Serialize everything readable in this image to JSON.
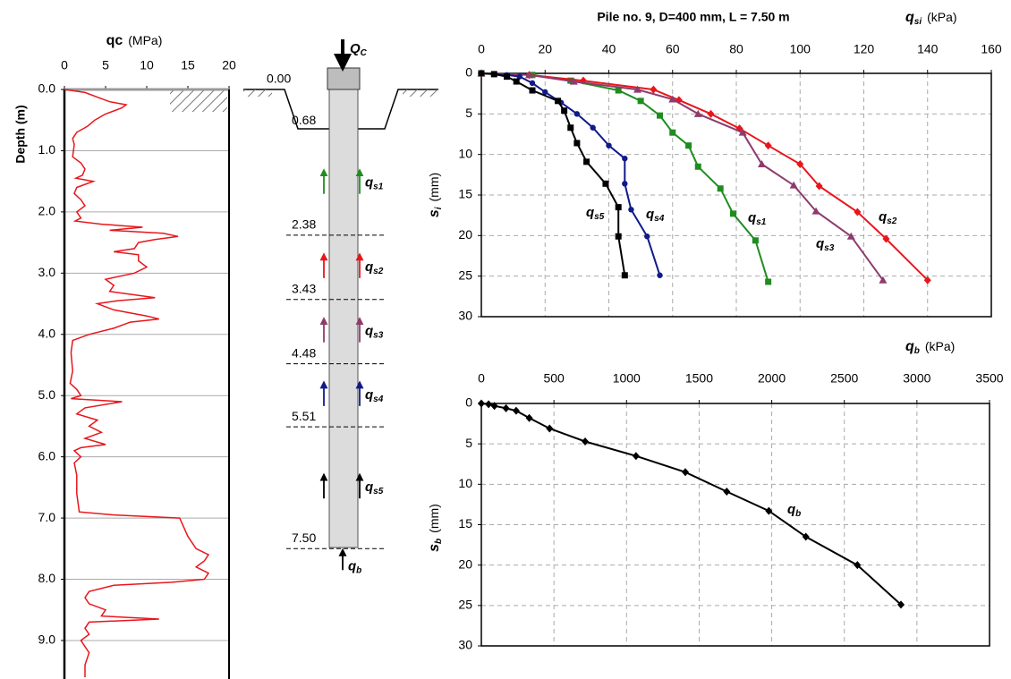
{
  "chart_data": [
    {
      "type": "line",
      "xlabel": {
        "symbol": "qc",
        "unit": "(MPa)"
      },
      "ylabel": "Depth (m)",
      "xaxis_position": "top",
      "yaxis_inverted": true,
      "grid": "y",
      "grid_style": "solid",
      "xlim": [
        0,
        20
      ],
      "xticks": [
        0,
        5,
        10,
        15,
        20
      ],
      "ylim": [
        0,
        9.6
      ],
      "yticks": [
        {
          "value": 0,
          "label": "0.0"
        },
        {
          "value": 1,
          "label": "1.0"
        },
        {
          "value": 2,
          "label": "2.0"
        },
        {
          "value": 3,
          "label": "3.0"
        },
        {
          "value": 4,
          "label": "4.0"
        },
        {
          "value": 5,
          "label": "5.0"
        },
        {
          "value": 6,
          "label": "6.0"
        },
        {
          "value": 7,
          "label": "7.0"
        },
        {
          "value": 8,
          "label": "8.0"
        },
        {
          "value": 9,
          "label": "9.0"
        }
      ],
      "series": [
        {
          "color": "#e8161b",
          "x": [
            0,
            2.5,
            4.5,
            5.5,
            7.5,
            7,
            6,
            5,
            3.7,
            2.8,
            1.5,
            1.0,
            1.2,
            1.0,
            2.0,
            2.5,
            2.2,
            1.4,
            3.5,
            1.5,
            1.2,
            2.0,
            2.5,
            1.5,
            2.0,
            1.3,
            4.5,
            9.5,
            5.5,
            12.0,
            13.8,
            11.0,
            9.0,
            8.5,
            6.0,
            9.0,
            9.0,
            10.0,
            8.5,
            5.0,
            6.0,
            5.5,
            11.0,
            6.5,
            4.0,
            6.0,
            10.0,
            11.5,
            8.0,
            6.0,
            3.0,
            1.0,
            0.8,
            1.0,
            0.7,
            1.5,
            2.0,
            0.8,
            7.0,
            2.5,
            1.5,
            4.0,
            3.0,
            4.5,
            2.5,
            5.0,
            2.0,
            1.2,
            2.0,
            1.2,
            1.5,
            1.5,
            1.8,
            6.0,
            14.0,
            15.0,
            16.0,
            17.5,
            17.0,
            16.0,
            17.5,
            17.0,
            13.0,
            6.0,
            3.0,
            2.5,
            3.0,
            5.0,
            4.5,
            11.5,
            3.0,
            2.5,
            3.0,
            2.0,
            3.0,
            2.5,
            2.5
          ],
          "values": [
            0,
            0.05,
            0.15,
            0.2,
            0.25,
            0.3,
            0.35,
            0.4,
            0.5,
            0.6,
            0.7,
            0.8,
            0.9,
            1.1,
            1.2,
            1.3,
            1.4,
            1.45,
            1.5,
            1.6,
            1.7,
            1.8,
            1.9,
            2.0,
            2.1,
            2.15,
            2.2,
            2.25,
            2.3,
            2.35,
            2.4,
            2.45,
            2.5,
            2.6,
            2.65,
            2.7,
            2.8,
            2.9,
            3.0,
            3.1,
            3.2,
            3.3,
            3.4,
            3.45,
            3.5,
            3.6,
            3.7,
            3.75,
            3.8,
            3.9,
            4.0,
            4.1,
            4.3,
            4.6,
            4.8,
            4.9,
            5.0,
            5.05,
            5.1,
            5.2,
            5.3,
            5.4,
            5.5,
            5.6,
            5.7,
            5.8,
            5.85,
            5.9,
            6.0,
            6.1,
            6.3,
            6.6,
            6.9,
            6.95,
            7.0,
            7.3,
            7.5,
            7.6,
            7.7,
            7.8,
            7.9,
            8.0,
            8.05,
            8.1,
            8.2,
            8.3,
            8.4,
            8.5,
            8.6,
            8.65,
            8.7,
            8.8,
            8.9,
            9.0,
            9.2,
            9.4,
            9.6
          ]
        }
      ]
    },
    {
      "type": "line",
      "title": "Pile no. 9, D=400 mm, L = 7.50 m",
      "xlabel": {
        "symbol": "qsi",
        "unit": "(kPa)"
      },
      "ylabel": {
        "symbol": "si",
        "unit": "(mm)"
      },
      "xaxis_position": "top",
      "yaxis_inverted": true,
      "grid": "both",
      "grid_style": "dashed",
      "xlim": [
        0,
        160
      ],
      "xticks": [
        0,
        20,
        40,
        60,
        80,
        100,
        120,
        140,
        160
      ],
      "ylim": [
        0,
        30
      ],
      "yticks": [
        0,
        5,
        10,
        15,
        20,
        25,
        30
      ],
      "series": [
        {
          "name": "qs1",
          "color": "#1f8c1f",
          "marker": "square",
          "x": [
            0,
            16,
            28,
            43,
            50,
            56,
            60,
            65,
            68,
            75,
            79,
            86,
            90
          ],
          "values": [
            0,
            0.2,
            0.9,
            2.1,
            3.4,
            5.2,
            7.3,
            8.9,
            11.5,
            14.2,
            17.3,
            20.6,
            25.7
          ]
        },
        {
          "name": "qs2",
          "color": "#e8161b",
          "marker": "diamond",
          "x": [
            0,
            15,
            32,
            54,
            62,
            72,
            81,
            90,
            100,
            106,
            118,
            127,
            140
          ],
          "values": [
            0,
            0.2,
            0.9,
            2.0,
            3.3,
            5.0,
            6.8,
            8.9,
            11.2,
            13.9,
            17.1,
            20.4,
            25.5
          ]
        },
        {
          "name": "qs3",
          "color": "#8e3b6c",
          "marker": "triangle",
          "x": [
            0,
            15,
            29,
            49,
            60,
            68,
            82,
            88,
            98,
            105,
            116,
            126
          ],
          "values": [
            0,
            0.2,
            1.0,
            2.0,
            3.2,
            5.0,
            7.3,
            11.2,
            13.8,
            17.0,
            20.1,
            25.5
          ]
        },
        {
          "name": "qs4",
          "color": "#101a8a",
          "marker": "circle",
          "x": [
            0,
            8,
            12,
            16,
            20,
            25,
            30,
            35,
            40,
            45,
            45,
            47,
            52,
            56
          ],
          "values": [
            0,
            0.2,
            0.4,
            1.2,
            2.3,
            3.6,
            5.0,
            6.7,
            8.9,
            10.5,
            13.6,
            16.8,
            20.1,
            24.9
          ]
        },
        {
          "name": "qs5",
          "color": "#000000",
          "marker": "square",
          "x": [
            0,
            4,
            8,
            11,
            16,
            24,
            26,
            28,
            30,
            33,
            39,
            43,
            43,
            45
          ],
          "values": [
            0,
            0.1,
            0.4,
            1.0,
            2.1,
            3.4,
            4.6,
            6.7,
            8.6,
            10.9,
            13.6,
            16.5,
            20.1,
            24.9
          ]
        }
      ]
    },
    {
      "type": "line",
      "xlabel": {
        "symbol": "qb",
        "unit": "(kPa)"
      },
      "ylabel": {
        "symbol": "sb",
        "unit": "(mm)"
      },
      "xaxis_position": "top",
      "yaxis_inverted": true,
      "grid": "both",
      "grid_style": "dashed",
      "xlim": [
        0,
        3500
      ],
      "xticks": [
        0,
        500,
        1000,
        1500,
        2000,
        2500,
        3000,
        3500
      ],
      "ylim": [
        0,
        30
      ],
      "yticks": [
        0,
        5,
        10,
        15,
        20,
        25,
        30
      ],
      "series": [
        {
          "name": "qb",
          "color": "#000000",
          "marker": "diamond",
          "x": [
            0,
            50,
            90,
            170,
            240,
            330,
            470,
            715,
            1065,
            1405,
            1690,
            1980,
            2235,
            2590,
            2890
          ],
          "values": [
            0,
            0.1,
            0.3,
            0.6,
            0.9,
            1.8,
            3.1,
            4.7,
            6.5,
            8.5,
            10.9,
            13.3,
            16.5,
            20.0,
            24.9
          ]
        }
      ]
    }
  ],
  "pile_diagram": {
    "load": "QC",
    "levels": [
      {
        "value": 0,
        "label": "0.00"
      },
      {
        "value": 0.68,
        "label": "0.68"
      },
      {
        "value": 2.38,
        "label": "2.38"
      },
      {
        "value": 3.43,
        "label": "3.43"
      },
      {
        "value": 4.48,
        "label": "4.48"
      },
      {
        "value": 5.51,
        "label": "5.51"
      },
      {
        "value": 7.5,
        "label": "7.50"
      }
    ],
    "shaft_labels": [
      {
        "label": "qs1",
        "color": "#1f8c1f"
      },
      {
        "label": "qs2",
        "color": "#e8161b"
      },
      {
        "label": "qs3",
        "color": "#8e3b6c"
      },
      {
        "label": "qs4",
        "color": "#101a8a"
      },
      {
        "label": "qs5",
        "color": "#000000"
      }
    ],
    "base_label": "qb"
  }
}
